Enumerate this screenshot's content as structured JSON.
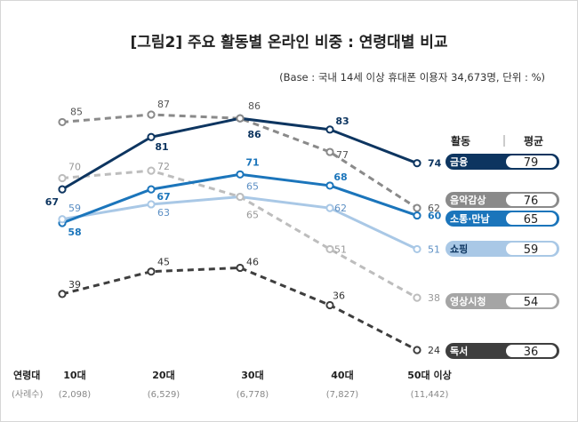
{
  "chart_data": {
    "type": "line",
    "title": "[그림2] 주요 활동별 온라인 비중 : 연령대별 비교",
    "note": "(Base : 국내 14세 이상 휴대폰 이용자 34,673명, 단위 : %)",
    "x_header": "연령대",
    "n_header": "(사례수)",
    "categories": [
      "10대",
      "20대",
      "30대",
      "40대",
      "50대 이상"
    ],
    "sample_sizes": [
      "(2,098)",
      "(6,529)",
      "(6,778)",
      "(7,827)",
      "(11,442)"
    ],
    "legend_header_activity": "활동",
    "legend_header_average": "평균",
    "grid": false,
    "legend_position": "right",
    "series": [
      {
        "name": "금융",
        "values": [
          67,
          81,
          86,
          83,
          74
        ],
        "average": "79",
        "color": "#0d3560",
        "dash": false,
        "label_color": "#0d3560",
        "legend_style": "solid"
      },
      {
        "name": "음악감상",
        "values": [
          85,
          87,
          86,
          77,
          62
        ],
        "average": "76",
        "color": "#8a8a8a",
        "dash": true,
        "label_color": "#555555",
        "legend_style": "solid"
      },
      {
        "name": "소통·만남",
        "values": [
          58,
          67,
          71,
          68,
          60
        ],
        "average": "65",
        "color": "#1b75bb",
        "dash": false,
        "label_color": "#1b75bb",
        "legend_style": "solid"
      },
      {
        "name": "쇼핑",
        "values": [
          59,
          63,
          65,
          62,
          51
        ],
        "average": "59",
        "color": "#a9c8e6",
        "dash": false,
        "label_color": "#5c8fc4",
        "legend_style": "light"
      },
      {
        "name": "영상시청",
        "values": [
          70,
          72,
          65,
          51,
          38
        ],
        "average": "54",
        "color": "#bdbdbd",
        "dash": true,
        "label_color": "#999999",
        "legend_style": "grey"
      },
      {
        "name": "독서",
        "values": [
          39,
          45,
          46,
          36,
          24
        ],
        "average": "36",
        "color": "#3e3e3e",
        "dash": true,
        "label_color": "#333333",
        "legend_style": "solid"
      }
    ]
  }
}
